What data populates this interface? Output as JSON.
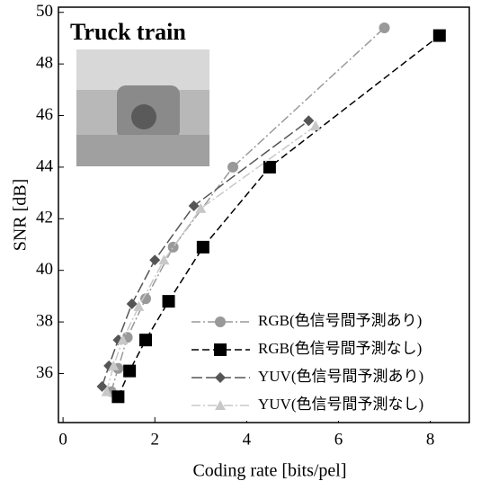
{
  "chart_data": {
    "type": "line",
    "title": "Truck train",
    "x_label": "Coding rate [bits/pel]",
    "y_label": "SNR [dB]",
    "xlim": [
      -0.1,
      8.85
    ],
    "ylim": [
      34.1,
      50.2
    ],
    "xticks": [
      0,
      2,
      4,
      6,
      8
    ],
    "yticks": [
      36,
      38,
      40,
      42,
      44,
      46,
      48,
      50
    ],
    "legend": "lower right",
    "series": [
      {
        "name": "RGB(色信号間予測あり)",
        "color": "#999999",
        "marker": "circle",
        "dash": "10 3 2 3",
        "x": [
          1.05,
          1.2,
          1.4,
          1.8,
          2.4,
          3.7,
          7.0
        ],
        "values": [
          35.3,
          36.2,
          37.4,
          38.9,
          40.9,
          44.0,
          49.4
        ]
      },
      {
        "name": "RGB(色信号間予測なし)",
        "color": "#000000",
        "marker": "square",
        "dash": "8 4",
        "x": [
          1.2,
          1.45,
          1.8,
          2.3,
          3.05,
          4.5,
          8.2
        ],
        "values": [
          35.1,
          36.1,
          37.3,
          38.8,
          40.9,
          44.0,
          49.1
        ]
      },
      {
        "name": "YUV(色信号間予測あり)",
        "color": "#555555",
        "marker": "diamond",
        "dash": "12 4",
        "x": [
          0.85,
          1.0,
          1.2,
          1.5,
          2.0,
          2.85,
          5.35
        ],
        "values": [
          35.5,
          36.3,
          37.3,
          38.7,
          40.4,
          42.5,
          45.8
        ]
      },
      {
        "name": "YUV(色信号間予測なし)",
        "color": "#c8c8c8",
        "marker": "triangle",
        "dash": "10 3 2 3",
        "x": [
          0.95,
          1.1,
          1.3,
          1.65,
          2.2,
          3.0,
          5.5
        ],
        "values": [
          35.3,
          36.3,
          37.3,
          38.6,
          40.4,
          42.4,
          45.6
        ]
      }
    ]
  }
}
